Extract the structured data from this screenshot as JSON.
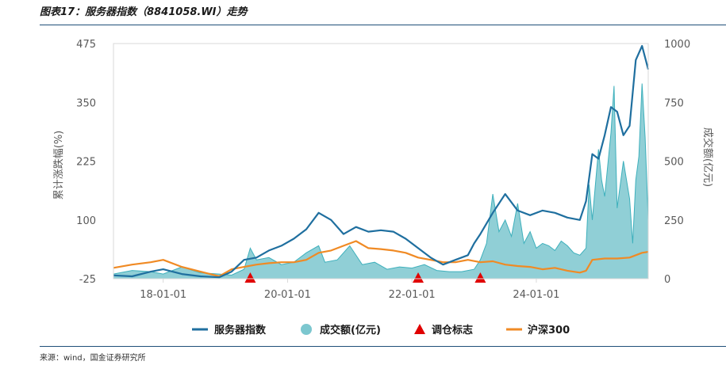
{
  "title": "图表17：服务器指数（8841058.WI）走势",
  "source": "来源：wind，国金证券研究所",
  "chart_data": {
    "type": "line",
    "ylabel_left": "累计涨跌幅(%)",
    "ylabel_right": "成交额(亿元)",
    "left_ticks": [
      "475",
      "350",
      "225",
      "100",
      "-25"
    ],
    "right_ticks": [
      "1000",
      "750",
      "500",
      "250",
      "0"
    ],
    "ylim_left": [
      -25,
      475
    ],
    "ylim_right": [
      0,
      1000
    ],
    "x_ticks": [
      "18-01-01",
      "20-01-01",
      "22-01-01",
      "24-01-01"
    ],
    "x_tick_years": [
      2018.0,
      2020.0,
      2022.0,
      2024.0
    ],
    "xlim": [
      2017.2,
      2025.8
    ],
    "legend": {
      "index": "服务器指数",
      "volume": "成交额(亿元)",
      "rebalance": "调仓标志",
      "csi300": "沪深300"
    },
    "colors": {
      "index": "#1f6f9f",
      "volume_fill": "#7cc7cf",
      "volume_line": "#3eb0bc",
      "csi300": "#f08a24",
      "rebalance": "#e00000",
      "axis": "#d9d9d9"
    },
    "series_index": {
      "x": [
        2017.2,
        2017.5,
        2017.8,
        2018.0,
        2018.3,
        2018.6,
        2018.9,
        2019.1,
        2019.3,
        2019.5,
        2019.7,
        2019.9,
        2020.1,
        2020.3,
        2020.5,
        2020.7,
        2020.9,
        2021.1,
        2021.3,
        2021.5,
        2021.7,
        2021.9,
        2022.1,
        2022.3,
        2022.5,
        2022.7,
        2022.9,
        2023.0,
        2023.1,
        2023.3,
        2023.5,
        2023.7,
        2023.9,
        2024.1,
        2024.3,
        2024.5,
        2024.7,
        2024.8,
        2024.9,
        2025.0,
        2025.1,
        2025.2,
        2025.3,
        2025.4,
        2025.5,
        2025.6,
        2025.7,
        2025.8
      ],
      "y": [
        -18,
        -20,
        -10,
        -5,
        -15,
        -20,
        -22,
        -10,
        15,
        20,
        35,
        45,
        60,
        80,
        115,
        100,
        70,
        85,
        75,
        78,
        75,
        60,
        40,
        20,
        5,
        15,
        25,
        50,
        70,
        115,
        155,
        120,
        110,
        120,
        115,
        105,
        100,
        140,
        240,
        230,
        280,
        340,
        330,
        280,
        300,
        440,
        470,
        420
      ]
    },
    "series_csi300": {
      "x": [
        2017.2,
        2017.5,
        2017.8,
        2018.0,
        2018.3,
        2018.6,
        2018.9,
        2019.1,
        2019.3,
        2019.5,
        2019.7,
        2019.9,
        2020.1,
        2020.3,
        2020.5,
        2020.7,
        2020.9,
        2021.1,
        2021.3,
        2021.5,
        2021.7,
        2021.9,
        2022.1,
        2022.3,
        2022.5,
        2022.7,
        2022.9,
        2023.1,
        2023.3,
        2023.5,
        2023.7,
        2023.9,
        2024.1,
        2024.3,
        2024.5,
        2024.7,
        2024.8,
        2024.9,
        2025.1,
        2025.3,
        2025.5,
        2025.7,
        2025.8
      ],
      "y": [
        -2,
        5,
        10,
        15,
        0,
        -10,
        -20,
        -5,
        0,
        5,
        8,
        10,
        10,
        15,
        30,
        35,
        45,
        55,
        40,
        38,
        35,
        30,
        20,
        15,
        10,
        10,
        15,
        10,
        12,
        5,
        2,
        0,
        -5,
        -2,
        -8,
        -12,
        -8,
        15,
        18,
        18,
        20,
        30,
        32
      ]
    },
    "series_volume": {
      "x": [
        2017.2,
        2017.5,
        2017.8,
        2018.0,
        2018.3,
        2018.6,
        2018.9,
        2019.1,
        2019.3,
        2019.4,
        2019.5,
        2019.7,
        2019.9,
        2020.1,
        2020.3,
        2020.5,
        2020.6,
        2020.8,
        2021.0,
        2021.2,
        2021.4,
        2021.6,
        2021.8,
        2022.0,
        2022.2,
        2022.4,
        2022.6,
        2022.8,
        2023.0,
        2023.1,
        2023.2,
        2023.3,
        2023.4,
        2023.5,
        2023.6,
        2023.7,
        2023.8,
        2023.9,
        2024.0,
        2024.1,
        2024.2,
        2024.3,
        2024.4,
        2024.5,
        2024.6,
        2024.7,
        2024.8,
        2024.85,
        2024.9,
        2025.0,
        2025.05,
        2025.1,
        2025.2,
        2025.25,
        2025.3,
        2025.4,
        2025.5,
        2025.55,
        2025.6,
        2025.65,
        2025.7,
        2025.75,
        2025.8
      ],
      "y": [
        20,
        35,
        30,
        20,
        50,
        25,
        20,
        15,
        40,
        130,
        80,
        90,
        60,
        70,
        110,
        140,
        70,
        80,
        140,
        60,
        70,
        40,
        50,
        45,
        60,
        35,
        30,
        30,
        40,
        80,
        150,
        360,
        200,
        250,
        180,
        320,
        150,
        200,
        130,
        150,
        140,
        120,
        160,
        140,
        110,
        100,
        130,
        400,
        250,
        550,
        420,
        350,
        620,
        820,
        300,
        500,
        340,
        150,
        420,
        520,
        830,
        600,
        250
      ]
    },
    "rebalance_x": [
      2019.4,
      2022.1,
      2023.1
    ]
  }
}
